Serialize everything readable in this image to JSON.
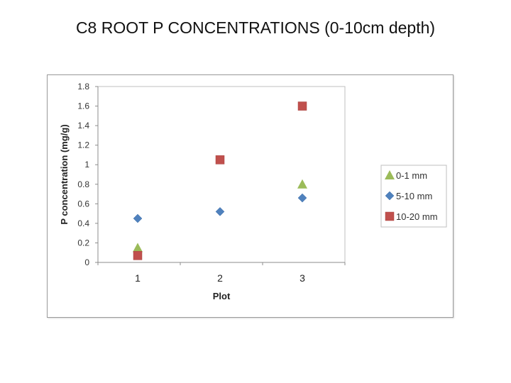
{
  "title": "C8 ROOT P CONCENTRATIONS (0-10cm depth)",
  "chart_data": {
    "type": "scatter",
    "xlabel": "Plot",
    "ylabel": "P concentration (mg/g)",
    "categories": [
      "1",
      "2",
      "3"
    ],
    "x": [
      1,
      2,
      3
    ],
    "ylim": [
      0,
      1.8
    ],
    "yticks": [
      "0",
      "0.2",
      "0.4",
      "0.6",
      "0.8",
      "1",
      "1.2",
      "1.4",
      "1.6",
      "1.8"
    ],
    "grid": false,
    "legend_position": "right",
    "series": [
      {
        "name": "0-1 mm",
        "marker": "triangle",
        "color": "#9bbb59",
        "values": [
          0.15,
          null,
          0.8
        ]
      },
      {
        "name": "5-10 mm",
        "marker": "diamond",
        "color": "#4f81bd",
        "values": [
          0.45,
          0.52,
          0.66
        ]
      },
      {
        "name": "10-20 mm",
        "marker": "square",
        "color": "#c0504d",
        "values": [
          0.07,
          1.05,
          1.6
        ]
      }
    ]
  }
}
